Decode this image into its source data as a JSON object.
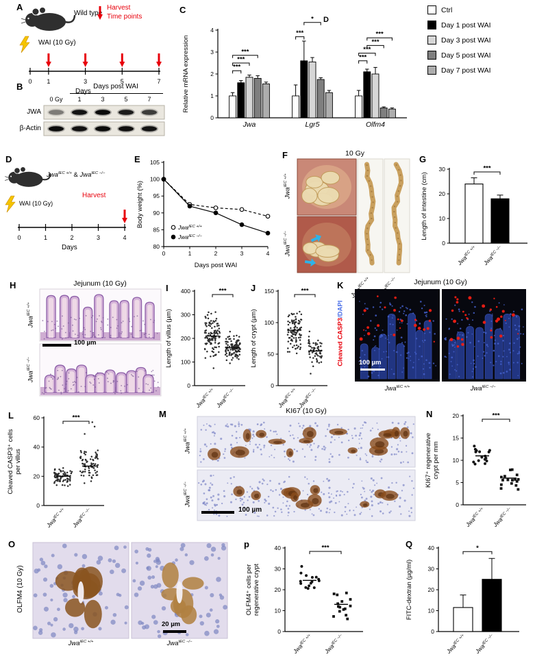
{
  "genotypes": {
    "wt": {
      "base": "Jwa",
      "sup": "IEC +/+"
    },
    "ko": {
      "base": "Jwa",
      "sup": "IEC −/−"
    }
  },
  "panels": {
    "A": {
      "label": "A",
      "mouse": "Wild type",
      "harvest_line1": "Harvest",
      "harvest_line2": "Time points",
      "wai": "WAI (10 Gy)",
      "ticks": [
        "0",
        "1",
        "3",
        "5",
        "7"
      ],
      "axis": "Days"
    },
    "B": {
      "label": "B",
      "header": "Days post WAI",
      "lane0": "0 Gy",
      "lanes": [
        "1",
        "3",
        "5",
        "7"
      ],
      "row1": "JWA",
      "row2": "β-Actin"
    },
    "C": {
      "label": "C",
      "stray_label": "D"
    },
    "legend": {
      "items": [
        {
          "label": "Ctrl",
          "color": "#ffffff"
        },
        {
          "label": "Day 1 post WAI",
          "color": "#000000"
        },
        {
          "label": "Day 3 post WAI",
          "color": "#d6d6d6"
        },
        {
          "label": "Day 5 post WAI",
          "color": "#7f7f7f"
        },
        {
          "label": "Day 7 post WAI",
          "color": "#adadad"
        }
      ]
    },
    "D": {
      "label": "D",
      "amp": " & ",
      "wai": "WAI (10 Gy)",
      "harvest": "Harvest",
      "ticks": [
        "0",
        "1",
        "2",
        "3",
        "4"
      ],
      "axis": "Days"
    },
    "E": {
      "label": "E"
    },
    "F": {
      "label": "F",
      "title": "10 Gy"
    },
    "G": {
      "label": "G"
    },
    "H": {
      "label": "H",
      "title": "Jejunum (10 Gy)",
      "scale": "100 µm"
    },
    "I": {
      "label": "I"
    },
    "J": {
      "label": "J"
    },
    "K": {
      "label": "K",
      "title": "Jejunum (10 Gy)",
      "ylabel_red": "Cleaved CASP3",
      "ylabel_blue": "/DAPI",
      "scale": "100 µm"
    },
    "L": {
      "label": "L"
    },
    "M": {
      "label": "M",
      "title": "KI67 (10 Gy)",
      "scale": "100 µm"
    },
    "N": {
      "label": "N"
    },
    "O": {
      "label": "O",
      "side_title": "OLFM4 (10 Gy)",
      "scale": "20 µm"
    },
    "P": {
      "label": "p"
    },
    "Q": {
      "label": "Q"
    }
  },
  "chart_data": [
    {
      "panel": "C",
      "type": "bar",
      "ylabel": "Relative mRNA expression",
      "ylim": [
        0,
        4
      ],
      "yticks": [
        0,
        1,
        2,
        3,
        4
      ],
      "categories": [
        "Jwa",
        "Lgr5",
        "Olfm4"
      ],
      "series": [
        {
          "name": "Ctrl",
          "color": "#ffffff",
          "values": [
            1.0,
            1.0,
            1.0
          ],
          "errors": [
            0.15,
            0.5,
            0.25
          ]
        },
        {
          "name": "Day 1 post WAI",
          "color": "#000000",
          "values": [
            1.6,
            2.6,
            2.1
          ],
          "errors": [
            0.1,
            0.9,
            0.12
          ]
        },
        {
          "name": "Day 3 post WAI",
          "color": "#d6d6d6",
          "values": [
            1.85,
            2.55,
            2.0
          ],
          "errors": [
            0.1,
            0.2,
            0.3
          ]
        },
        {
          "name": "Day 5 post WAI",
          "color": "#7f7f7f",
          "values": [
            1.8,
            1.75,
            0.45
          ],
          "errors": [
            0.12,
            0.08,
            0.05
          ]
        },
        {
          "name": "Day 7 post WAI",
          "color": "#adadad",
          "values": [
            1.55,
            1.15,
            0.4
          ],
          "errors": [
            0.08,
            0.1,
            0.05
          ]
        }
      ],
      "significance": [
        {
          "a": [
            0,
            0
          ],
          "b": [
            0,
            1
          ],
          "y": 2.15,
          "label": "***"
        },
        {
          "a": [
            0,
            0
          ],
          "b": [
            0,
            2
          ],
          "y": 2.5,
          "label": "***"
        },
        {
          "a": [
            0,
            0
          ],
          "b": [
            0,
            3
          ],
          "y": 2.85,
          "label": "***"
        },
        {
          "a": [
            1,
            0
          ],
          "b": [
            1,
            1
          ],
          "y": 3.7,
          "label": "***"
        },
        {
          "a": [
            1,
            1
          ],
          "b": [
            1,
            3
          ],
          "y": 4.35,
          "label": "*"
        },
        {
          "a": [
            2,
            0
          ],
          "b": [
            2,
            1
          ],
          "y": 2.6,
          "label": "***"
        },
        {
          "a": [
            2,
            0
          ],
          "b": [
            2,
            2
          ],
          "y": 2.95,
          "label": "***"
        },
        {
          "a": [
            2,
            1
          ],
          "b": [
            2,
            3
          ],
          "y": 3.3,
          "label": "***"
        },
        {
          "a": [
            2,
            1
          ],
          "b": [
            2,
            4
          ],
          "y": 3.65,
          "label": "***"
        }
      ]
    },
    {
      "panel": "E",
      "type": "line",
      "ylabel": "Body weight (%)",
      "xlabel": "Days post WAI",
      "ylim": [
        80,
        105
      ],
      "yticks": [
        80,
        85,
        90,
        95,
        100,
        105
      ],
      "x": [
        0,
        1,
        2,
        3,
        4
      ],
      "series": [
        {
          "base": "Jwa",
          "sup": "IEC +/+",
          "marker": "open",
          "dashed": true,
          "values": [
            100,
            92.5,
            91.5,
            91,
            89
          ]
        },
        {
          "base": "Jwa",
          "sup": "IEC −/−",
          "marker": "filled",
          "dashed": false,
          "values": [
            100,
            92,
            90,
            86.5,
            84
          ]
        }
      ]
    },
    {
      "panel": "G",
      "type": "bars2",
      "ylabel": "Length of intestine (cm)",
      "ylim": [
        0,
        30
      ],
      "yticks": [
        0,
        10,
        20,
        30
      ],
      "groups": [
        {
          "base": "Jwa",
          "sup": "IEC +/+",
          "value": 24,
          "error": 2.5,
          "color": "#ffffff"
        },
        {
          "base": "Jwa",
          "sup": "IEC −/−",
          "value": 18,
          "error": 1.5,
          "color": "#000000"
        }
      ],
      "sig": "***"
    },
    {
      "panel": "I",
      "type": "dots",
      "ylabel": [
        "Length of villus (µm)"
      ],
      "ylim": [
        0,
        400
      ],
      "yticks": [
        0,
        100,
        200,
        300,
        400
      ],
      "groups": [
        {
          "base": "Jwa",
          "sup": "IEC +/+",
          "mean": 210,
          "sd": 45,
          "n": 110,
          "marker": "circle"
        },
        {
          "base": "Jwa",
          "sup": "IEC −/−",
          "mean": 160,
          "sd": 28,
          "n": 110,
          "marker": "circle"
        }
      ],
      "sig": "***"
    },
    {
      "panel": "J",
      "type": "dots",
      "ylabel": [
        "Length of crypt (µm)"
      ],
      "ylim": [
        0,
        150
      ],
      "yticks": [
        0,
        50,
        100,
        150
      ],
      "groups": [
        {
          "base": "Jwa",
          "sup": "IEC +/+",
          "mean": 88,
          "sd": 16,
          "n": 100,
          "marker": "circle"
        },
        {
          "base": "Jwa",
          "sup": "IEC −/−",
          "mean": 55,
          "sd": 14,
          "n": 60,
          "marker": "circle"
        }
      ],
      "sig": "***"
    },
    {
      "panel": "L",
      "type": "dots",
      "ylabel": [
        "Cleaved CASP3⁺ cells",
        "per villus"
      ],
      "ylim": [
        0,
        60
      ],
      "yticks": [
        0,
        20,
        40,
        60
      ],
      "groups": [
        {
          "base": "Jwa",
          "sup": "IEC +/+",
          "mean": 20,
          "sd": 3,
          "n": 75,
          "marker": "circle"
        },
        {
          "base": "Jwa",
          "sup": "IEC −/−",
          "mean": 27,
          "sd": 6,
          "n": 75,
          "marker": "circle",
          "outliers": [
            49,
            54,
            57
          ]
        }
      ],
      "sig": "***"
    },
    {
      "panel": "N",
      "type": "dots",
      "ylabel": [
        "KI67⁺ regenerative",
        "crypt per mm"
      ],
      "ylim": [
        0,
        20
      ],
      "yticks": [
        0,
        5,
        10,
        15,
        20
      ],
      "groups": [
        {
          "base": "Jwa",
          "sup": "IEC +/+",
          "mean": 11,
          "sd": 1.3,
          "n": 16,
          "marker": "circle"
        },
        {
          "base": "Jwa",
          "sup": "IEC −/−",
          "mean": 6,
          "sd": 1.2,
          "n": 16,
          "marker": "square"
        }
      ],
      "sig": "***"
    },
    {
      "panel": "P",
      "type": "dots",
      "ylabel": [
        "OLFM4⁺ cells per",
        "regenerative crypt"
      ],
      "ylim": [
        0,
        40
      ],
      "yticks": [
        0,
        10,
        20,
        30,
        40
      ],
      "groups": [
        {
          "base": "Jwa",
          "sup": "IEC +/+",
          "mean": 24.5,
          "sd": 3,
          "n": 15,
          "marker": "circle"
        },
        {
          "base": "Jwa",
          "sup": "IEC −/−",
          "mean": 13,
          "sd": 3,
          "n": 15,
          "marker": "square"
        }
      ],
      "sig": "***"
    },
    {
      "panel": "Q",
      "type": "bars2",
      "ylabel": "FITC-dextran (µg/ml)",
      "ylim": [
        0,
        40
      ],
      "yticks": [
        0,
        10,
        20,
        30,
        40
      ],
      "groups": [
        {
          "base": "Jwa",
          "sup": "IEC +/+",
          "value": 11.5,
          "error": 6,
          "color": "#ffffff"
        },
        {
          "base": "Jwa",
          "sup": "IEC −/−",
          "value": 25,
          "error": 10,
          "color": "#000000"
        }
      ],
      "sig": "*"
    }
  ]
}
